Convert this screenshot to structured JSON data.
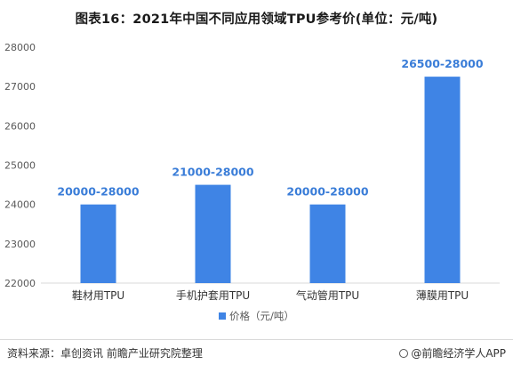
{
  "title": "图表16：2021年中国不同应用领域TPU参考价(单位：元/吨)",
  "footer": {
    "source": "资料来源：卓创资讯 前瞻产业研究院整理",
    "brand": "@前瞻经济学人APP"
  },
  "colors": {
    "bar": "#3f84e5",
    "data_label": "#3a7dd8",
    "grid": "#d9d9d9",
    "axis_text": "#595959"
  },
  "chart_data": {
    "type": "bar",
    "categories": [
      "鞋材用TPU",
      "手机护套用TPU",
      "气动管用TPU",
      "薄膜用TPU"
    ],
    "series": [
      {
        "name": "价格（元/吨）",
        "values": [
          24000,
          24500,
          24000,
          27250
        ]
      }
    ],
    "data_labels": [
      "20000-28000",
      "21000-28000",
      "20000-28000",
      "26500-28000"
    ],
    "ylim": [
      22000,
      28000
    ],
    "yticks": [
      22000,
      23000,
      24000,
      25000,
      26000,
      27000,
      28000
    ],
    "grid": false,
    "legend_position": "bottom"
  }
}
